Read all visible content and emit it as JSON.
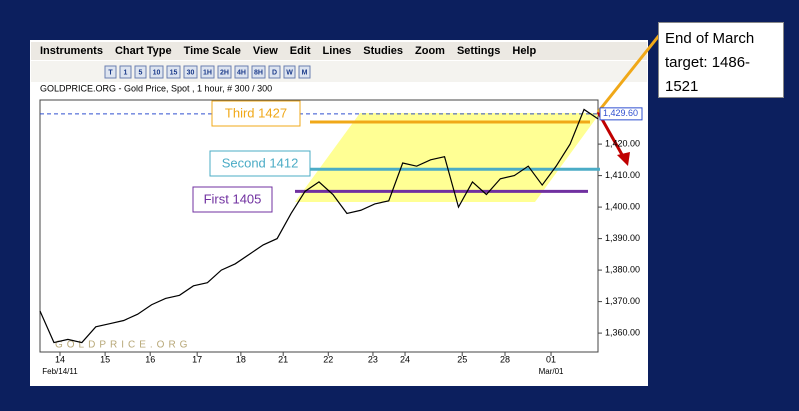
{
  "menu": [
    "Instruments",
    "Chart Type",
    "Time Scale",
    "View",
    "Edit",
    "Lines",
    "Studies",
    "Zoom",
    "Settings",
    "Help"
  ],
  "toolbar": [
    "T",
    "1",
    "5",
    "10",
    "15",
    "30",
    "1H",
    "2H",
    "4H",
    "8H",
    "D",
    "W",
    "M"
  ],
  "header": "GOLDPRICE.ORG - Gold Price, Spot , 1 hour, # 300 / 300",
  "watermark": "GOLDPRICE.ORG",
  "target_note": "End of March target: 1486-1521",
  "chart_data": {
    "type": "line",
    "color": "#000000",
    "x": [
      0,
      3,
      6,
      9,
      12,
      15,
      18,
      21,
      24,
      27,
      30,
      33,
      36,
      39,
      42,
      45,
      48,
      51,
      54,
      57,
      60,
      63,
      66,
      69,
      72,
      75,
      78,
      81,
      84,
      87,
      90,
      93,
      96,
      99,
      102,
      105,
      108,
      111,
      114,
      117,
      120
    ],
    "values": [
      1367,
      1357,
      1358,
      1357,
      1362,
      1363,
      1364,
      1366,
      1369,
      1371,
      1372,
      1375,
      1376,
      1380,
      1382,
      1385,
      1388,
      1390,
      1398,
      1405,
      1408,
      1404,
      1398,
      1399,
      1401,
      1402,
      1414,
      1413,
      1415,
      1416,
      1400,
      1408,
      1404,
      1409,
      1410,
      1413,
      1407,
      1413,
      1420,
      1431,
      1428
    ],
    "xlim": [
      0,
      120
    ],
    "xticks": [
      {
        "value": 4.3,
        "label": "14"
      },
      {
        "value": 14,
        "label": "15"
      },
      {
        "value": 23.7,
        "label": "16"
      },
      {
        "value": 33.8,
        "label": "17"
      },
      {
        "value": 43.2,
        "label": "18"
      },
      {
        "value": 52.3,
        "label": "21"
      },
      {
        "value": 62,
        "label": "22"
      },
      {
        "value": 71.6,
        "label": "23"
      },
      {
        "value": 78.5,
        "label": "24"
      },
      {
        "value": 90.8,
        "label": "25"
      },
      {
        "value": 100,
        "label": "28"
      },
      {
        "value": 109.9,
        "label": "01"
      }
    ],
    "date_labels": [
      {
        "value": 4.3,
        "label": "Feb/14/11"
      },
      {
        "value": 109.9,
        "label": "Mar/01"
      }
    ],
    "ylim": [
      1354,
      1434
    ],
    "yticks": [
      {
        "value": 1360,
        "label": "1,360.00"
      },
      {
        "value": 1370,
        "label": "1,370.00"
      },
      {
        "value": 1380,
        "label": "1,380.00"
      },
      {
        "value": 1390,
        "label": "1,390.00"
      },
      {
        "value": 1400,
        "label": "1,400.00"
      },
      {
        "value": 1410,
        "label": "1,410.00"
      },
      {
        "value": 1420,
        "label": "1,420.00"
      }
    ],
    "last_price": {
      "value": 1429.6,
      "label": "1,429.60"
    },
    "annotations": [
      {
        "text": "Third 1427",
        "value": 1427,
        "color": "#f0a818"
      },
      {
        "text": "Second 1412",
        "value": 1412,
        "color": "#4bacc6"
      },
      {
        "text": "First 1405",
        "value": 1405,
        "color": "#7030a0"
      }
    ]
  }
}
